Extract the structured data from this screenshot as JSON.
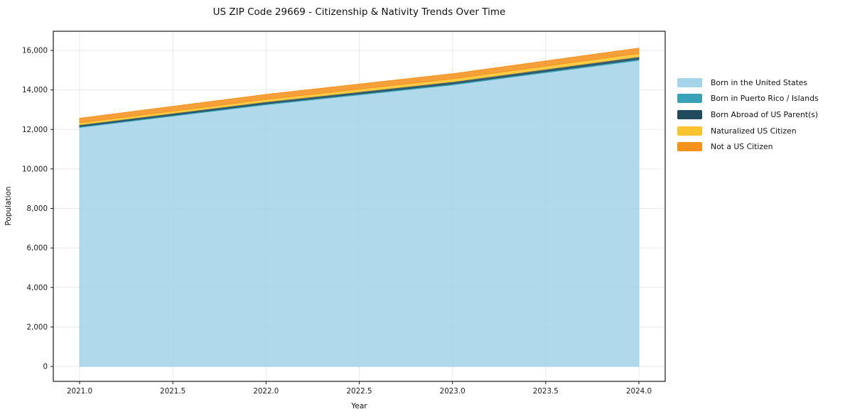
{
  "chart_data": {
    "type": "area",
    "stacked": true,
    "title": "US ZIP Code 29669 - Citizenship & Nativity Trends Over Time",
    "xlabel": "Year",
    "ylabel": "Population",
    "x": [
      2021,
      2022,
      2023,
      2024
    ],
    "series": [
      {
        "name": "Born in the United States",
        "color": "#a5d3e9",
        "values": [
          12100,
          13250,
          14250,
          15500
        ]
      },
      {
        "name": "Born in Puerto Rico / Islands",
        "color": "#3aa2b8",
        "values": [
          45,
          50,
          55,
          60
        ]
      },
      {
        "name": "Born Abroad of US Parent(s)",
        "color": "#204b5e",
        "values": [
          90,
          100,
          110,
          120
        ]
      },
      {
        "name": "Naturalized US Citizen",
        "color": "#fcc32f",
        "values": [
          100,
          125,
          150,
          170
        ]
      },
      {
        "name": "Not a US Citizen",
        "color": "#f5921e",
        "values": [
          230,
          245,
          255,
          265
        ]
      }
    ],
    "totals": [
      12565,
      13770,
      14820,
      16115
    ],
    "xticks": [
      "2021.0",
      "2021.5",
      "2022.0",
      "2022.5",
      "2023.0",
      "2023.5",
      "2024.0"
    ],
    "yticks": [
      "0",
      "2,000",
      "4,000",
      "6,000",
      "8,000",
      "10,000",
      "12,000",
      "14,000",
      "16,000"
    ],
    "xlim": [
      2021,
      2024
    ],
    "ylim": [
      0,
      16000
    ],
    "grid": true,
    "legend_position": "right of plot, no frame"
  }
}
